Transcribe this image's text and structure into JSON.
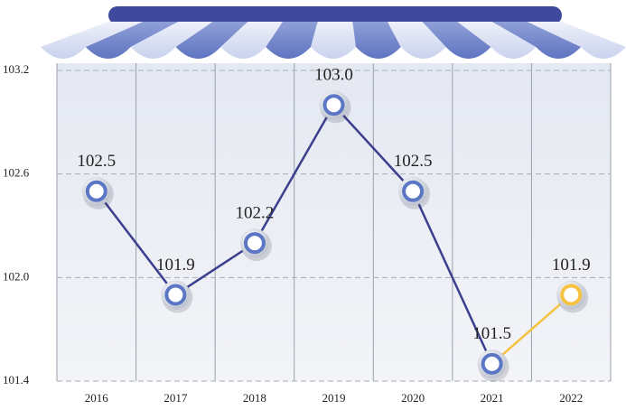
{
  "chart_data": {
    "type": "line",
    "categories": [
      "2016",
      "2017",
      "2018",
      "2019",
      "2020",
      "2021",
      "2022"
    ],
    "values": [
      102.5,
      101.9,
      102.2,
      103.0,
      102.5,
      101.5,
      101.9
    ],
    "value_labels": [
      "102.5",
      "101.9",
      "102.2",
      "103.0",
      "102.5",
      "101.5",
      "101.9"
    ],
    "color": "#3b3f8e",
    "point_colors": [
      "#3b3f8e",
      "#3b3f8e",
      "#3b3f8e",
      "#3b3f8e",
      "#3b3f8e",
      "#3b3f8e",
      "#f5c242"
    ],
    "ylim": [
      101.4,
      103.2
    ],
    "yticks": [
      101.4,
      {
        "value": 102,
        "label": "102.0"
      },
      102.6,
      103.2
    ],
    "grid": true
  }
}
